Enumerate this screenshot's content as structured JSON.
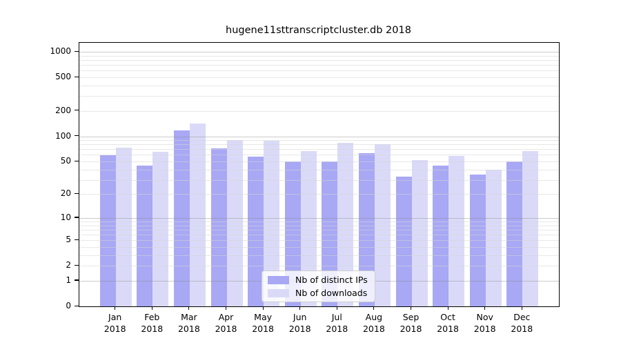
{
  "chart_data": {
    "type": "bar",
    "title": "hugene11sttranscriptcluster.db 2018",
    "categories": [
      "Jan",
      "Feb",
      "Mar",
      "Apr",
      "May",
      "Jun",
      "Jul",
      "Aug",
      "Sep",
      "Oct",
      "Nov",
      "Dec"
    ],
    "category_year": "2018",
    "series": [
      {
        "name": "Nb of distinct IPs",
        "color": "#a8a8f4",
        "values": [
          59,
          45,
          117,
          72,
          57,
          50,
          50,
          63,
          33,
          45,
          35,
          50
        ]
      },
      {
        "name": "Nb of downloads",
        "color": "#dadaf8",
        "values": [
          73,
          65,
          141,
          90,
          88,
          67,
          83,
          81,
          52,
          58,
          40,
          67
        ]
      }
    ],
    "xlabel": "",
    "ylabel": "",
    "yticks": [
      0,
      1,
      2,
      5,
      10,
      20,
      50,
      100,
      200,
      500,
      1000
    ],
    "yscale": "log1p",
    "ylim": [
      0,
      1000
    ],
    "grid": {
      "major": [
        1,
        10,
        100,
        1000
      ],
      "minor_multipliers": [
        2,
        3,
        4,
        5,
        6,
        7,
        8,
        9
      ],
      "minor_decades": [
        1,
        10,
        100
      ]
    },
    "legend_position": "bottom-center-inside"
  },
  "colors": {
    "background": "#ffffff",
    "axis": "#000000",
    "grid_major": "#c8c8c8",
    "grid_minor": "#ececec",
    "bar_distinct_ips": "#a8a8f4",
    "bar_downloads": "#dadaf8"
  }
}
